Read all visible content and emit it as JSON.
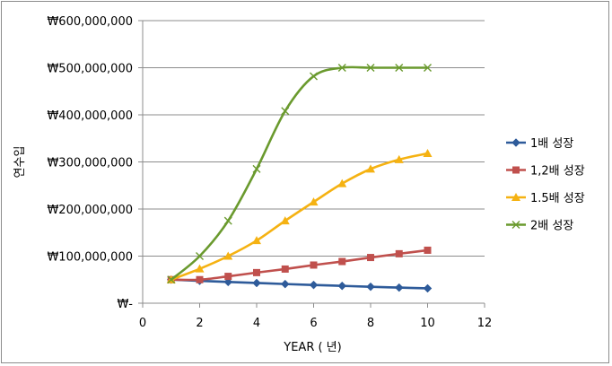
{
  "chart_data": {
    "type": "line",
    "xlabel": "YEAR ( 년)",
    "ylabel": "연수입",
    "xlim": [
      0,
      12
    ],
    "ylim": [
      0,
      600000000
    ],
    "x_ticks": [
      0,
      2,
      4,
      6,
      8,
      10,
      12
    ],
    "y_ticks": [
      0,
      100000000,
      200000000,
      300000000,
      400000000,
      500000000,
      600000000
    ],
    "y_tick_labels": [
      "₩-",
      "₩100,000,000",
      "₩200,000,000",
      "₩300,000,000",
      "₩400,000,000",
      "₩500,000,000",
      "₩600,000,000"
    ],
    "grid": "horizontal",
    "legend_position": "right",
    "x": [
      1,
      2,
      3,
      4,
      5,
      6,
      7,
      8,
      9,
      10
    ],
    "series": [
      {
        "name": "1배 성장",
        "color": "#2E5B9A",
        "marker": "diamond",
        "values": [
          50000000,
          47500000,
          45100000,
          42900000,
          40700000,
          38700000,
          36800000,
          34900000,
          33200000,
          31500000
        ]
      },
      {
        "name": "1,2배 성장",
        "color": "#C0504D",
        "marker": "square",
        "values": [
          50000000,
          50000000,
          57000000,
          65000000,
          72500000,
          81000000,
          88500000,
          97000000,
          105000000,
          112500000
        ]
      },
      {
        "name": "1.5배 성장",
        "color": "#F5B212",
        "marker": "triangle",
        "values": [
          50000000,
          73000000,
          100000000,
          133000000,
          175000000,
          215000000,
          254000000,
          285000000,
          305000000,
          318000000
        ]
      },
      {
        "name": "2배 성장",
        "color": "#6A9A2E",
        "marker": "x",
        "values": [
          50000000,
          100000000,
          175000000,
          285000000,
          408000000,
          482000000,
          500000000,
          500000000,
          500000000,
          500000000
        ]
      }
    ]
  }
}
